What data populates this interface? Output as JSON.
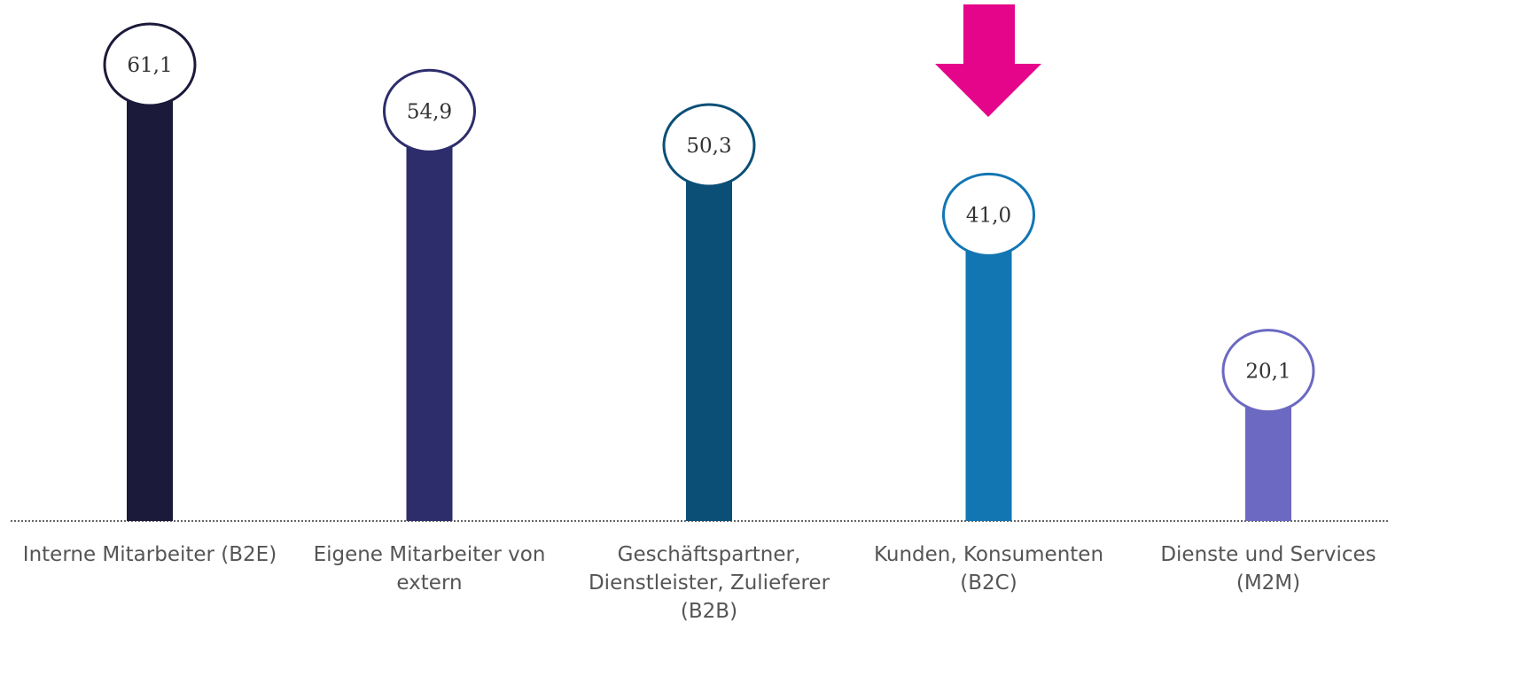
{
  "chart_data": {
    "type": "bar",
    "categories": [
      "Interne Mitarbeiter (B2E)",
      "Eigene Mitarbeiter von extern",
      "Geschäftspartner, Dienstleister, Zulieferer (B2B)",
      "Kunden, Konsumenten (B2C)",
      "Dienste und Services (M2M)"
    ],
    "values": [
      61.1,
      54.9,
      50.3,
      41.0,
      20.1
    ],
    "value_labels": [
      "61,1",
      "54,9",
      "50,3",
      "41,0",
      "20,1"
    ],
    "colors": [
      "#1b1a3b",
      "#2e2d6c",
      "#0b4f77",
      "#1276b3",
      "#6b69c2"
    ]
  }
}
